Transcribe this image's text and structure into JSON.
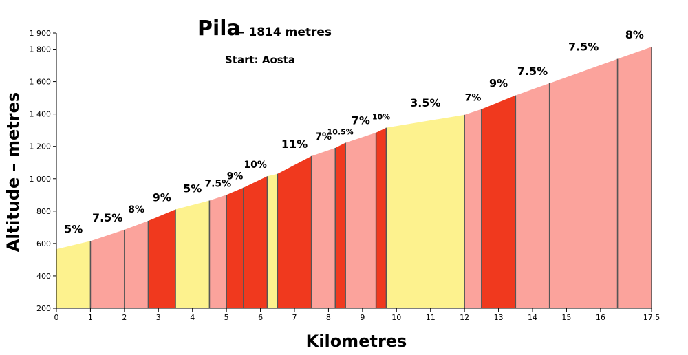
{
  "chart_data": {
    "type": "area",
    "title": "Pila",
    "subtitle": "– 1814 metres",
    "annotation": "Start: Aosta",
    "xlabel": "Kilometres",
    "ylabel": "Altitude – metres",
    "xlim": [
      0,
      17.5
    ],
    "ylim": [
      200,
      1900
    ],
    "x_ticks": [
      0,
      1,
      2,
      3,
      4,
      5,
      6,
      7,
      8,
      9,
      10,
      11,
      12,
      13,
      14,
      15,
      16,
      17.5
    ],
    "y_ticks": [
      200,
      400,
      600,
      800,
      1000,
      1200,
      1400,
      1600,
      1800,
      1900
    ],
    "y_tick_labels": [
      "200",
      "400",
      "600",
      "800",
      "1 000",
      "1 200",
      "1 400",
      "1 600",
      "1 800",
      "1 900"
    ],
    "colors": {
      "easy": "#fdf28e",
      "medium": "#fba39c",
      "steep": "#f0391e",
      "divider": "#555555"
    },
    "segments": [
      {
        "x0": 0.0,
        "x1": 1.0,
        "y0": 565,
        "y1": 615,
        "gradient": "5%",
        "category": "easy"
      },
      {
        "x0": 1.0,
        "x1": 2.0,
        "y0": 615,
        "y1": 685,
        "gradient": "7.5%",
        "category": "medium"
      },
      {
        "x0": 2.0,
        "x1": 2.7,
        "y0": 685,
        "y1": 740,
        "gradient": "8%",
        "category": "medium"
      },
      {
        "x0": 2.7,
        "x1": 3.5,
        "y0": 740,
        "y1": 810,
        "gradient": "9%",
        "category": "steep"
      },
      {
        "x0": 3.5,
        "x1": 4.5,
        "y0": 810,
        "y1": 865,
        "gradient": "5%",
        "category": "easy"
      },
      {
        "x0": 4.5,
        "x1": 5.0,
        "y0": 865,
        "y1": 900,
        "gradient": "7.5%",
        "category": "medium"
      },
      {
        "x0": 5.0,
        "x1": 5.5,
        "y0": 900,
        "y1": 945,
        "gradient": "9%",
        "category": "steep"
      },
      {
        "x0": 5.5,
        "x1": 6.2,
        "y0": 945,
        "y1": 1015,
        "gradient": "10%",
        "category": "steep"
      },
      {
        "x0": 6.2,
        "x1": 6.5,
        "y0": 1015,
        "y1": 1030,
        "gradient": "",
        "category": "easy"
      },
      {
        "x0": 6.5,
        "x1": 7.5,
        "y0": 1030,
        "y1": 1140,
        "gradient": "11%",
        "category": "steep"
      },
      {
        "x0": 7.5,
        "x1": 8.2,
        "y0": 1140,
        "y1": 1190,
        "gradient": "7%",
        "category": "medium"
      },
      {
        "x0": 8.2,
        "x1": 8.5,
        "y0": 1190,
        "y1": 1222,
        "gradient": "10.5%",
        "category": "steep"
      },
      {
        "x0": 8.5,
        "x1": 9.4,
        "y0": 1222,
        "y1": 1285,
        "gradient": "7%",
        "category": "medium"
      },
      {
        "x0": 9.4,
        "x1": 9.7,
        "y0": 1285,
        "y1": 1315,
        "gradient": "10%",
        "category": "steep"
      },
      {
        "x0": 9.7,
        "x1": 12.0,
        "y0": 1315,
        "y1": 1395,
        "gradient": "3.5%",
        "category": "easy"
      },
      {
        "x0": 12.0,
        "x1": 12.5,
        "y0": 1395,
        "y1": 1430,
        "gradient": "7%",
        "category": "medium"
      },
      {
        "x0": 12.5,
        "x1": 13.5,
        "y0": 1430,
        "y1": 1515,
        "gradient": "9%",
        "category": "steep"
      },
      {
        "x0": 13.5,
        "x1": 14.5,
        "y0": 1515,
        "y1": 1590,
        "gradient": "7.5%",
        "category": "medium"
      },
      {
        "x0": 14.5,
        "x1": 16.5,
        "y0": 1590,
        "y1": 1740,
        "gradient": "7.5%",
        "category": "medium"
      },
      {
        "x0": 16.5,
        "x1": 17.5,
        "y0": 1740,
        "y1": 1814,
        "gradient": "8%",
        "category": "medium"
      }
    ]
  }
}
